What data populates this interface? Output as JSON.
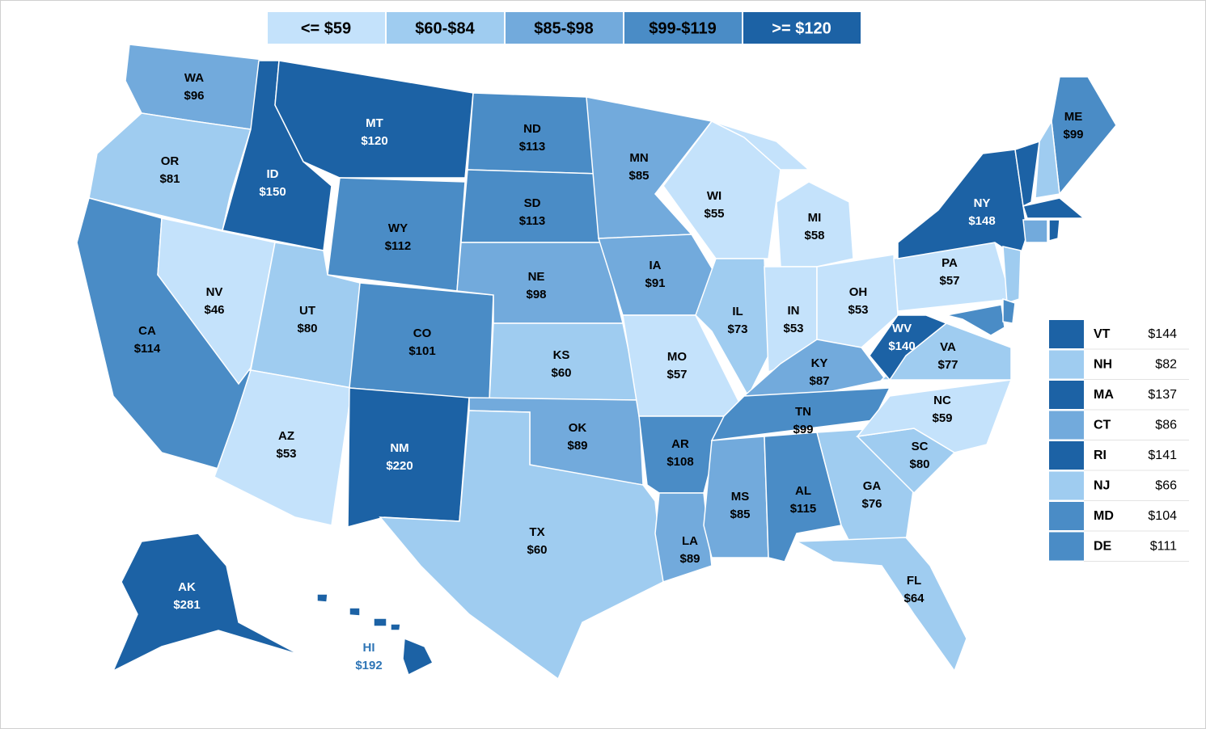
{
  "chart_data": {
    "type": "choropleth",
    "legend": [
      {
        "label": "<= $59",
        "max": 59,
        "color": "#c4e2fb"
      },
      {
        "label": "$60-$84",
        "min": 60,
        "max": 84,
        "color": "#9fccf0"
      },
      {
        "label": "$85-$98",
        "min": 85,
        "max": 98,
        "color": "#72aadc"
      },
      {
        "label": "$99-$119",
        "min": 99,
        "max": 119,
        "color": "#4a8cc6"
      },
      {
        "label": ">= $120",
        "min": 120,
        "color": "#1c62a5"
      }
    ],
    "categories": [
      "WA",
      "OR",
      "CA",
      "NV",
      "ID",
      "MT",
      "WY",
      "UT",
      "AZ",
      "CO",
      "NM",
      "ND",
      "SD",
      "NE",
      "KS",
      "OK",
      "TX",
      "MN",
      "IA",
      "MO",
      "AR",
      "LA",
      "WI",
      "IL",
      "MI",
      "IN",
      "OH",
      "KY",
      "TN",
      "MS",
      "AL",
      "GA",
      "FL",
      "SC",
      "NC",
      "VA",
      "WV",
      "PA",
      "NY",
      "ME",
      "AK",
      "HI"
    ],
    "values": [
      96,
      81,
      114,
      46,
      150,
      120,
      112,
      80,
      53,
      101,
      220,
      113,
      113,
      98,
      60,
      89,
      60,
      85,
      91,
      57,
      108,
      89,
      55,
      73,
      58,
      53,
      53,
      87,
      99,
      85,
      115,
      76,
      64,
      80,
      59,
      77,
      140,
      57,
      148,
      99,
      281,
      192
    ],
    "value_labels": [
      "$96",
      "$81",
      "$114",
      "$46",
      "$150",
      "$120",
      "$112",
      "$80",
      "$53",
      "$101",
      "$220",
      "$113",
      "$113",
      "$98",
      "$60",
      "$89",
      "$60",
      "$85",
      "$91",
      "$57",
      "$108",
      "$89",
      "$55",
      "$73",
      "$58",
      "$53",
      "$53",
      "$87",
      "$99",
      "$85",
      "$115",
      "$76",
      "$64",
      "$80",
      "$59",
      "$77",
      "$140",
      "$57",
      "$148",
      "$99",
      "$281",
      "$192"
    ],
    "table": {
      "categories": [
        "VT",
        "NH",
        "MA",
        "CT",
        "RI",
        "NJ",
        "MD",
        "DE"
      ],
      "values": [
        144,
        82,
        137,
        86,
        141,
        66,
        104,
        111
      ],
      "value_labels": [
        "$144",
        "$82",
        "$137",
        "$86",
        "$141",
        "$66",
        "$104",
        "$111"
      ]
    }
  }
}
